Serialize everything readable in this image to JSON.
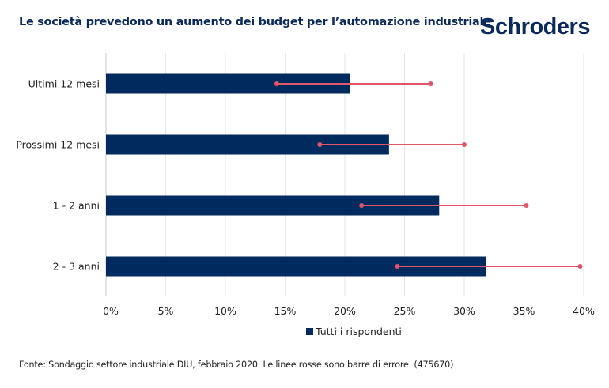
{
  "header": {
    "title": "Le società prevedono un aumento dei budget per l’automazione industriale",
    "logo": "Schroders"
  },
  "footer": {
    "source": "Fonte: Sondaggio settore industriale DIU, febbraio 2020. Le linee rosse sono barre di errore. (475670)"
  },
  "chart_data": {
    "type": "bar",
    "orientation": "horizontal",
    "categories": [
      "Ultimi 12 mesi",
      "Prossimi 12 mesi",
      "1 - 2 anni",
      "2 - 3 anni"
    ],
    "series": [
      {
        "name": "Tutti i rispondenti",
        "values": [
          20.4,
          23.7,
          27.9,
          31.8
        ],
        "error_low": [
          14.3,
          17.9,
          21.4,
          24.4
        ],
        "error_high": [
          27.2,
          30.0,
          35.2,
          39.7
        ]
      }
    ],
    "xlim": [
      0,
      40
    ],
    "xticks": [
      "0%",
      "5%",
      "10%",
      "15%",
      "20%",
      "25%",
      "30%",
      "35%",
      "40%"
    ],
    "grid": true,
    "legend": "bottom",
    "colors": {
      "bar": "#012a5e",
      "error": "#e05568",
      "grid": "#e6e6e6"
    }
  }
}
